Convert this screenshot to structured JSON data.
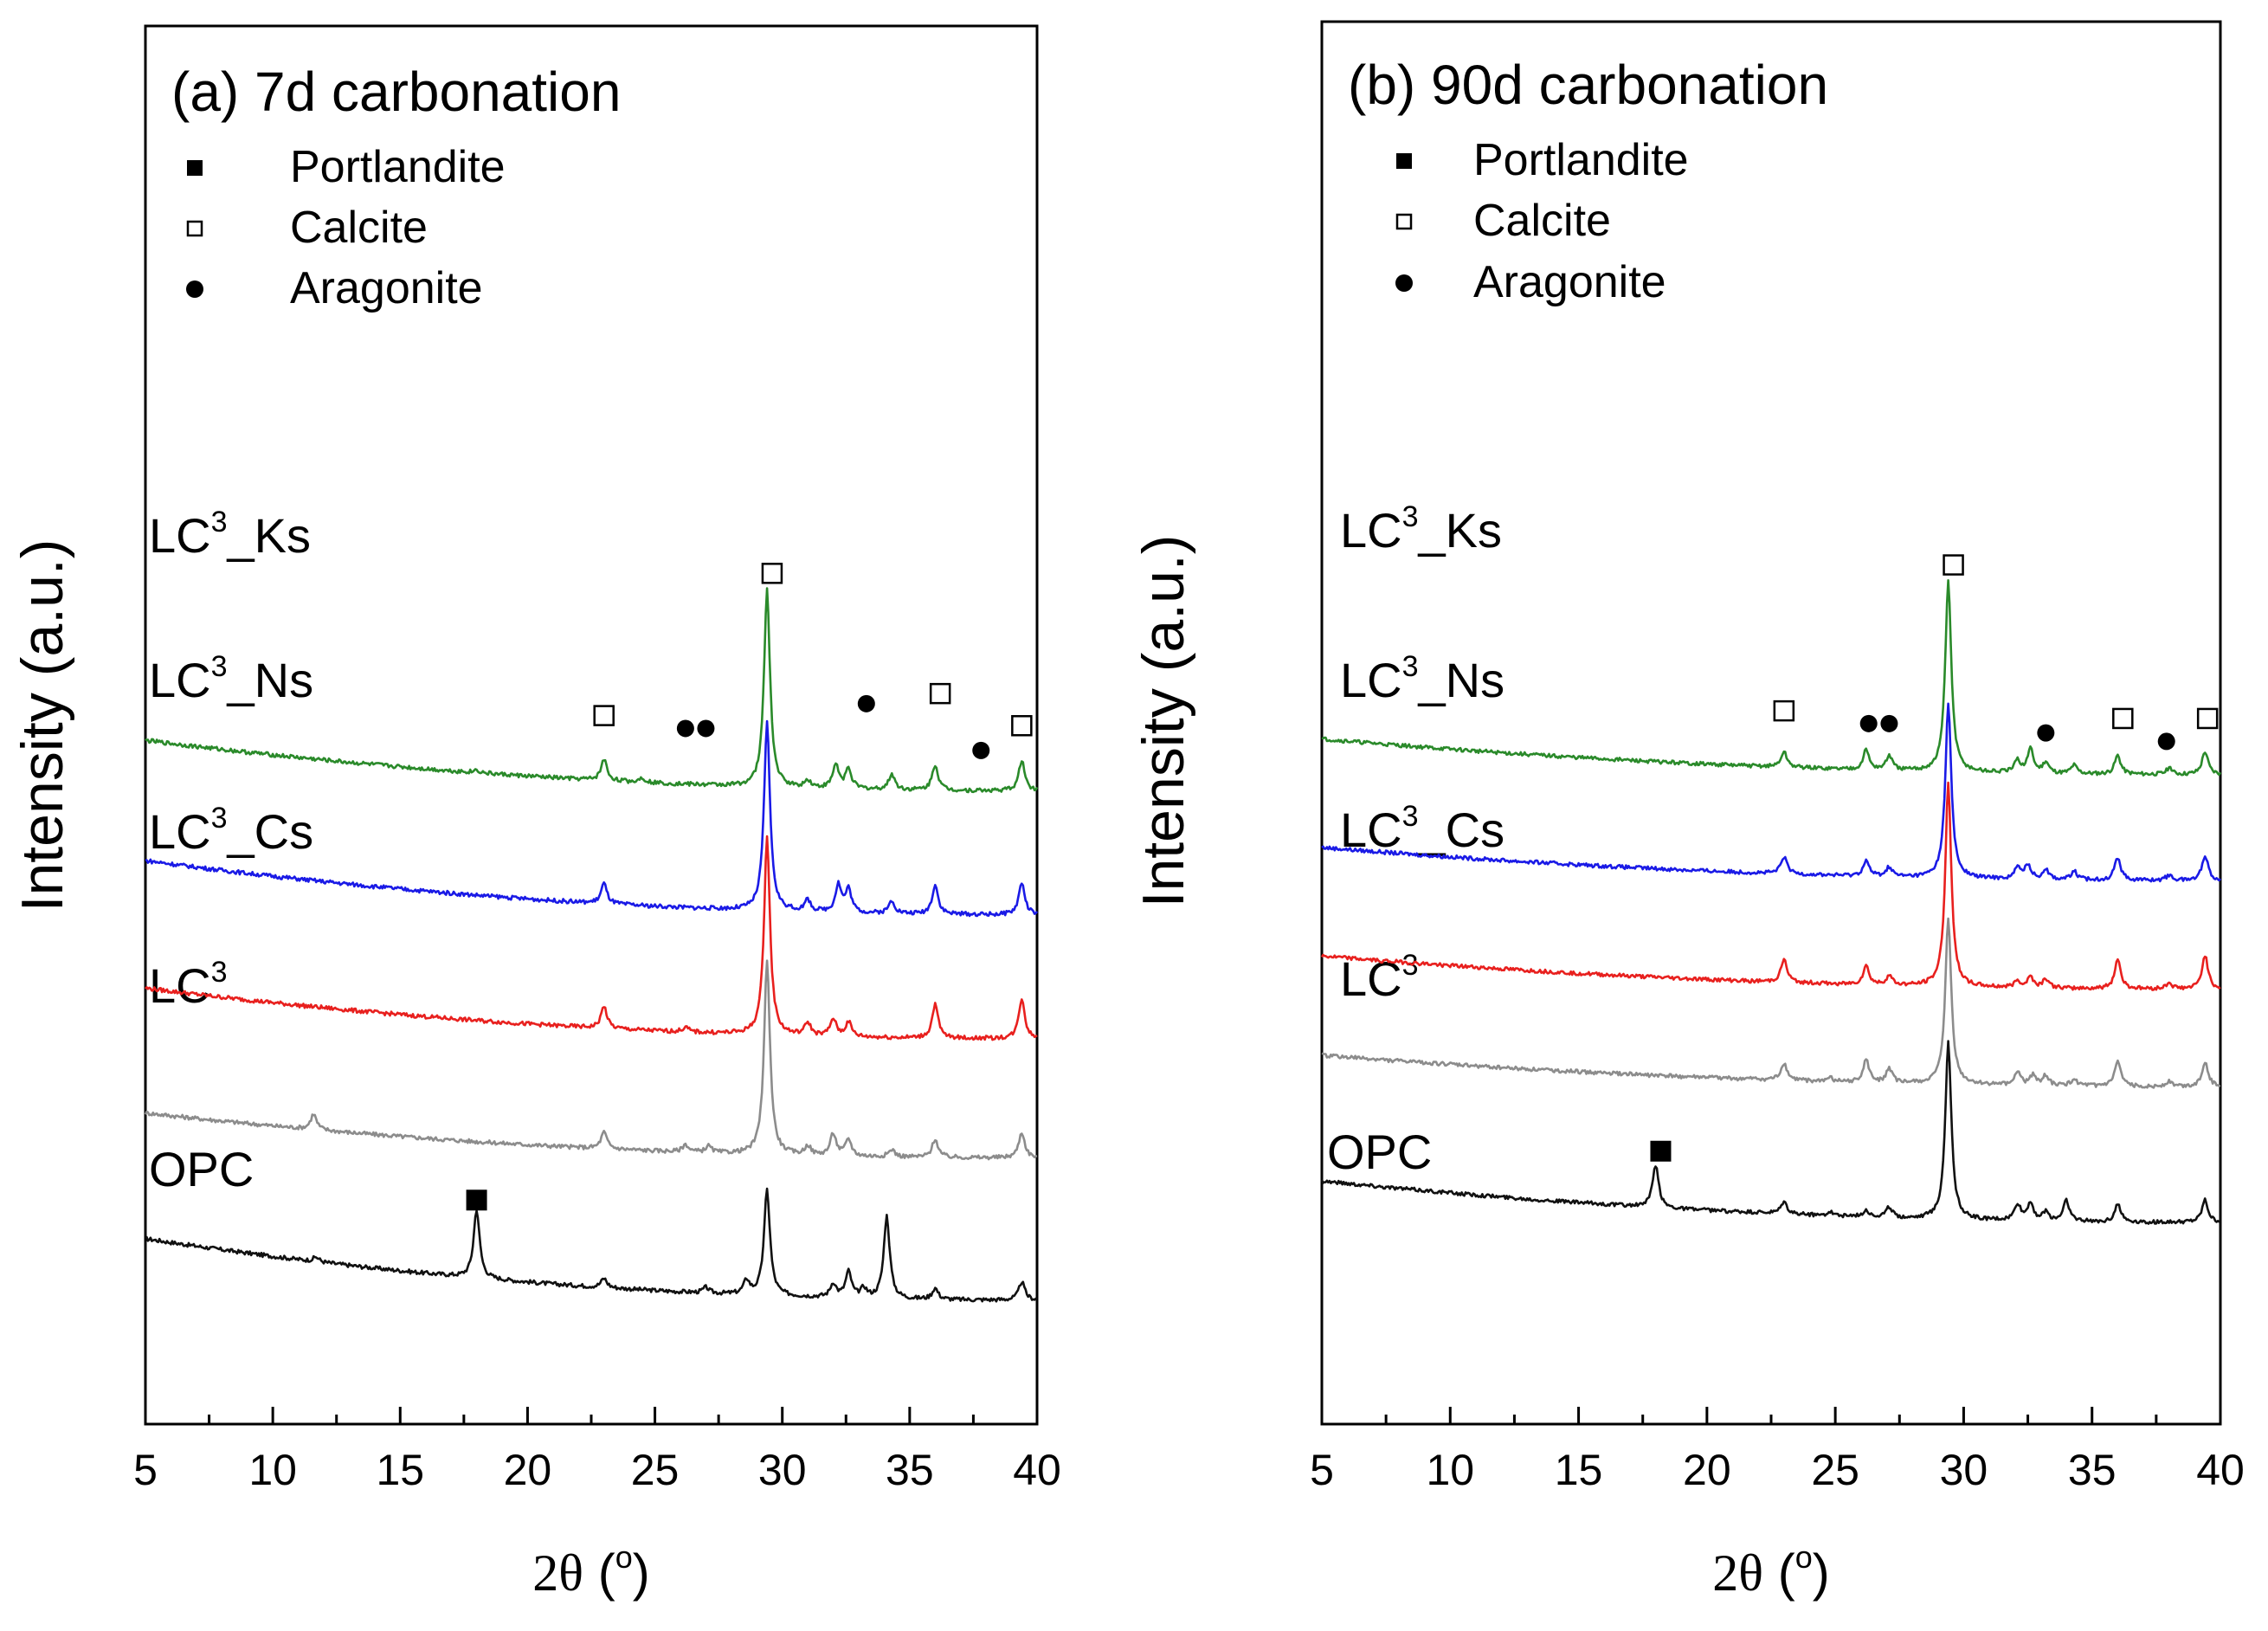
{
  "figure": {
    "x_label_symbol": "2θ",
    "x_label_unit_open": " (",
    "x_label_unit_sup": "o",
    "x_label_unit_close": ")",
    "y_label": "Intensity (a.u.)",
    "tick_labels": [
      "5",
      "10",
      "15",
      "20",
      "25",
      "30",
      "35",
      "40"
    ]
  },
  "chart_data": [
    {
      "type": "line",
      "title": "(a) 7d carbonation",
      "xlabel": "2θ (o)",
      "ylabel": "Intensity (a.u.)",
      "xlim": [
        5,
        40
      ],
      "xticks": [
        5,
        10,
        15,
        20,
        25,
        30,
        35,
        40
      ],
      "yticks": "none",
      "legend": [
        {
          "marker": "filled-square",
          "label": "Portlandite"
        },
        {
          "marker": "open-square",
          "label": "Calcite"
        },
        {
          "marker": "filled-circle",
          "label": "Aragonite"
        }
      ],
      "series": [
        {
          "name": "OPC",
          "label_main": "OPC",
          "label_sup": "",
          "label_tail": "",
          "color": "#111111",
          "offset": 0,
          "start": 0.7,
          "end": 0.03,
          "peaks": [
            [
              11.7,
              0.05
            ],
            [
              18.0,
              0.75
            ],
            [
              23.0,
              0.1
            ],
            [
              27.0,
              0.06
            ],
            [
              28.6,
              0.15
            ],
            [
              29.4,
              1.15
            ],
            [
              32.0,
              0.15
            ],
            [
              32.6,
              0.28
            ],
            [
              33.2,
              0.1
            ],
            [
              34.1,
              0.9
            ],
            [
              36.0,
              0.12
            ],
            [
              39.4,
              0.2
            ]
          ]
        },
        {
          "name": "LC3",
          "label_main": "LC",
          "label_sup": "3",
          "label_tail": "",
          "color": "#8c8c8c",
          "offset": 1.55,
          "start": 0.52,
          "end": 0.03,
          "peaks": [
            [
              11.6,
              0.17
            ],
            [
              23.0,
              0.18
            ],
            [
              26.2,
              0.08
            ],
            [
              27.1,
              0.07
            ],
            [
              29.4,
              2.1
            ],
            [
              31.0,
              0.1
            ],
            [
              32.0,
              0.24
            ],
            [
              32.6,
              0.18
            ],
            [
              34.3,
              0.08
            ],
            [
              36.0,
              0.2
            ],
            [
              39.4,
              0.28
            ]
          ]
        },
        {
          "name": "LC3_Cs",
          "label_main": "LC",
          "label_sup": "3",
          "label_tail": "_Cs",
          "color": "#e8201e",
          "offset": 2.85,
          "start": 0.58,
          "end": 0.03,
          "peaks": [
            [
              23.0,
              0.24
            ],
            [
              26.2,
              0.05
            ],
            [
              29.4,
              2.15
            ],
            [
              31.0,
              0.14
            ],
            [
              32.0,
              0.19
            ],
            [
              32.6,
              0.16
            ],
            [
              36.0,
              0.37
            ],
            [
              39.4,
              0.44
            ]
          ]
        },
        {
          "name": "LC3_Ns",
          "label_main": "LC",
          "label_sup": "3",
          "label_tail": "_Ns",
          "color": "#1a1ae6",
          "offset": 4.2,
          "start": 0.62,
          "end": 0.03,
          "peaks": [
            [
              23.0,
              0.22
            ],
            [
              29.4,
              2.05
            ],
            [
              31.0,
              0.12
            ],
            [
              32.2,
              0.3
            ],
            [
              32.6,
              0.25
            ],
            [
              34.3,
              0.14
            ],
            [
              36.0,
              0.32
            ],
            [
              39.4,
              0.35
            ]
          ]
        },
        {
          "name": "LC3_Ks",
          "label_main": "LC",
          "label_sup": "3",
          "label_tail": "_Ks",
          "color": "#2a8a2a",
          "offset": 5.55,
          "start": 0.58,
          "end": 0.03,
          "peaks": [
            [
              18.0,
              0.03
            ],
            [
              23.0,
              0.23
            ],
            [
              24.5,
              0.05
            ],
            [
              29.4,
              2.15
            ],
            [
              31.0,
              0.08
            ],
            [
              32.1,
              0.26
            ],
            [
              32.6,
              0.22
            ],
            [
              34.3,
              0.17
            ],
            [
              36.0,
              0.28
            ],
            [
              39.4,
              0.33
            ]
          ]
        }
      ],
      "annotations": [
        {
          "marker": "filled-square",
          "x": 18.0,
          "level": 1.12
        },
        {
          "marker": "open-square",
          "x": 23.0,
          "level": 6.4
        },
        {
          "marker": "filled-circle",
          "x": 26.2,
          "level": 6.26
        },
        {
          "marker": "filled-circle",
          "x": 27.0,
          "level": 6.26
        },
        {
          "marker": "open-square",
          "x": 29.6,
          "level": 7.95
        },
        {
          "marker": "filled-circle",
          "x": 33.3,
          "level": 6.53
        },
        {
          "marker": "open-square",
          "x": 36.2,
          "level": 6.64
        },
        {
          "marker": "filled-circle",
          "x": 37.8,
          "level": 6.02
        },
        {
          "marker": "open-square",
          "x": 39.4,
          "level": 6.29
        }
      ]
    },
    {
      "type": "line",
      "title": "(b) 90d carbonation",
      "xlabel": "2θ (o)",
      "ylabel": "Intensity (a.u.)",
      "xlim": [
        5,
        40
      ],
      "xticks": [
        5,
        10,
        15,
        20,
        25,
        30,
        35,
        40
      ],
      "yticks": "none",
      "legend": [
        {
          "marker": "filled-square",
          "label": "Portlandite"
        },
        {
          "marker": "open-square",
          "label": "Calcite"
        },
        {
          "marker": "filled-circle",
          "label": "Aragonite"
        }
      ],
      "series": [
        {
          "name": "OPC",
          "label_main": "OPC",
          "label_sup": "",
          "label_tail": "",
          "color": "#111111",
          "offset": 0,
          "start": 0.52,
          "end": 0.03,
          "peaks": [
            [
              18.0,
              0.5
            ],
            [
              23.0,
              0.14
            ],
            [
              24.8,
              0.05
            ],
            [
              26.2,
              0.08
            ],
            [
              27.1,
              0.12
            ],
            [
              29.4,
              2.1
            ],
            [
              32.1,
              0.19
            ],
            [
              32.6,
              0.21
            ],
            [
              33.2,
              0.1
            ],
            [
              34.0,
              0.25
            ],
            [
              36.0,
              0.22
            ],
            [
              39.4,
              0.26
            ]
          ]
        },
        {
          "name": "LC3",
          "label_main": "LC",
          "label_sup": "3",
          "label_tail": "",
          "color": "#8c8c8c",
          "offset": 1.6,
          "start": 0.4,
          "end": 0.03,
          "peaks": [
            [
              23.0,
              0.2
            ],
            [
              24.8,
              0.04
            ],
            [
              26.2,
              0.26
            ],
            [
              27.1,
              0.17
            ],
            [
              29.4,
              1.95
            ],
            [
              32.1,
              0.16
            ],
            [
              32.7,
              0.12
            ],
            [
              33.2,
              0.12
            ],
            [
              34.3,
              0.08
            ],
            [
              36.0,
              0.29
            ],
            [
              38.0,
              0.06
            ],
            [
              39.4,
              0.3
            ]
          ]
        },
        {
          "name": "LC3_Cs",
          "label_main": "LC",
          "label_sup": "3",
          "label_tail": "_Cs",
          "color": "#e8201e",
          "offset": 2.75,
          "start": 0.42,
          "end": 0.03,
          "peaks": [
            [
              23.0,
              0.27
            ],
            [
              26.2,
              0.22
            ],
            [
              27.1,
              0.11
            ],
            [
              29.4,
              2.4
            ],
            [
              32.1,
              0.08
            ],
            [
              32.6,
              0.13
            ],
            [
              33.2,
              0.11
            ],
            [
              36.0,
              0.35
            ],
            [
              38.0,
              0.07
            ],
            [
              39.4,
              0.4
            ]
          ]
        },
        {
          "name": "LC3_Ns",
          "label_main": "LC",
          "label_sup": "3",
          "label_tail": "_Ns",
          "color": "#1a1ae6",
          "offset": 4.03,
          "start": 0.42,
          "end": 0.03,
          "peaks": [
            [
              23.0,
              0.2
            ],
            [
              26.2,
              0.18
            ],
            [
              27.1,
              0.11
            ],
            [
              29.4,
              2.05
            ],
            [
              32.1,
              0.13
            ],
            [
              32.5,
              0.17
            ],
            [
              33.2,
              0.12
            ],
            [
              34.3,
              0.1
            ],
            [
              36.0,
              0.27
            ],
            [
              38.0,
              0.06
            ],
            [
              39.4,
              0.3
            ]
          ]
        },
        {
          "name": "LC3_Ks",
          "label_main": "LC",
          "label_sup": "3",
          "label_tail": "_Ks",
          "color": "#2a8a2a",
          "offset": 5.28,
          "start": 0.45,
          "end": 0.03,
          "peaks": [
            [
              23.0,
              0.18
            ],
            [
              26.2,
              0.23
            ],
            [
              27.1,
              0.17
            ],
            [
              29.4,
              2.25
            ],
            [
              32.1,
              0.14
            ],
            [
              32.6,
              0.28
            ],
            [
              33.2,
              0.13
            ],
            [
              34.3,
              0.1
            ],
            [
              36.0,
              0.22
            ],
            [
              38.0,
              0.07
            ],
            [
              39.4,
              0.27
            ]
          ]
        }
      ],
      "annotations": [
        {
          "marker": "filled-square",
          "x": 18.2,
          "level": 0.87
        },
        {
          "marker": "open-square",
          "x": 23.0,
          "level": 6.06
        },
        {
          "marker": "filled-circle",
          "x": 26.3,
          "level": 5.91
        },
        {
          "marker": "filled-circle",
          "x": 27.1,
          "level": 5.91
        },
        {
          "marker": "open-square",
          "x": 29.6,
          "level": 7.78
        },
        {
          "marker": "filled-circle",
          "x": 33.2,
          "level": 5.8
        },
        {
          "marker": "open-square",
          "x": 36.2,
          "level": 5.97
        },
        {
          "marker": "filled-circle",
          "x": 37.9,
          "level": 5.7
        },
        {
          "marker": "open-square",
          "x": 39.5,
          "level": 5.97
        }
      ]
    }
  ]
}
